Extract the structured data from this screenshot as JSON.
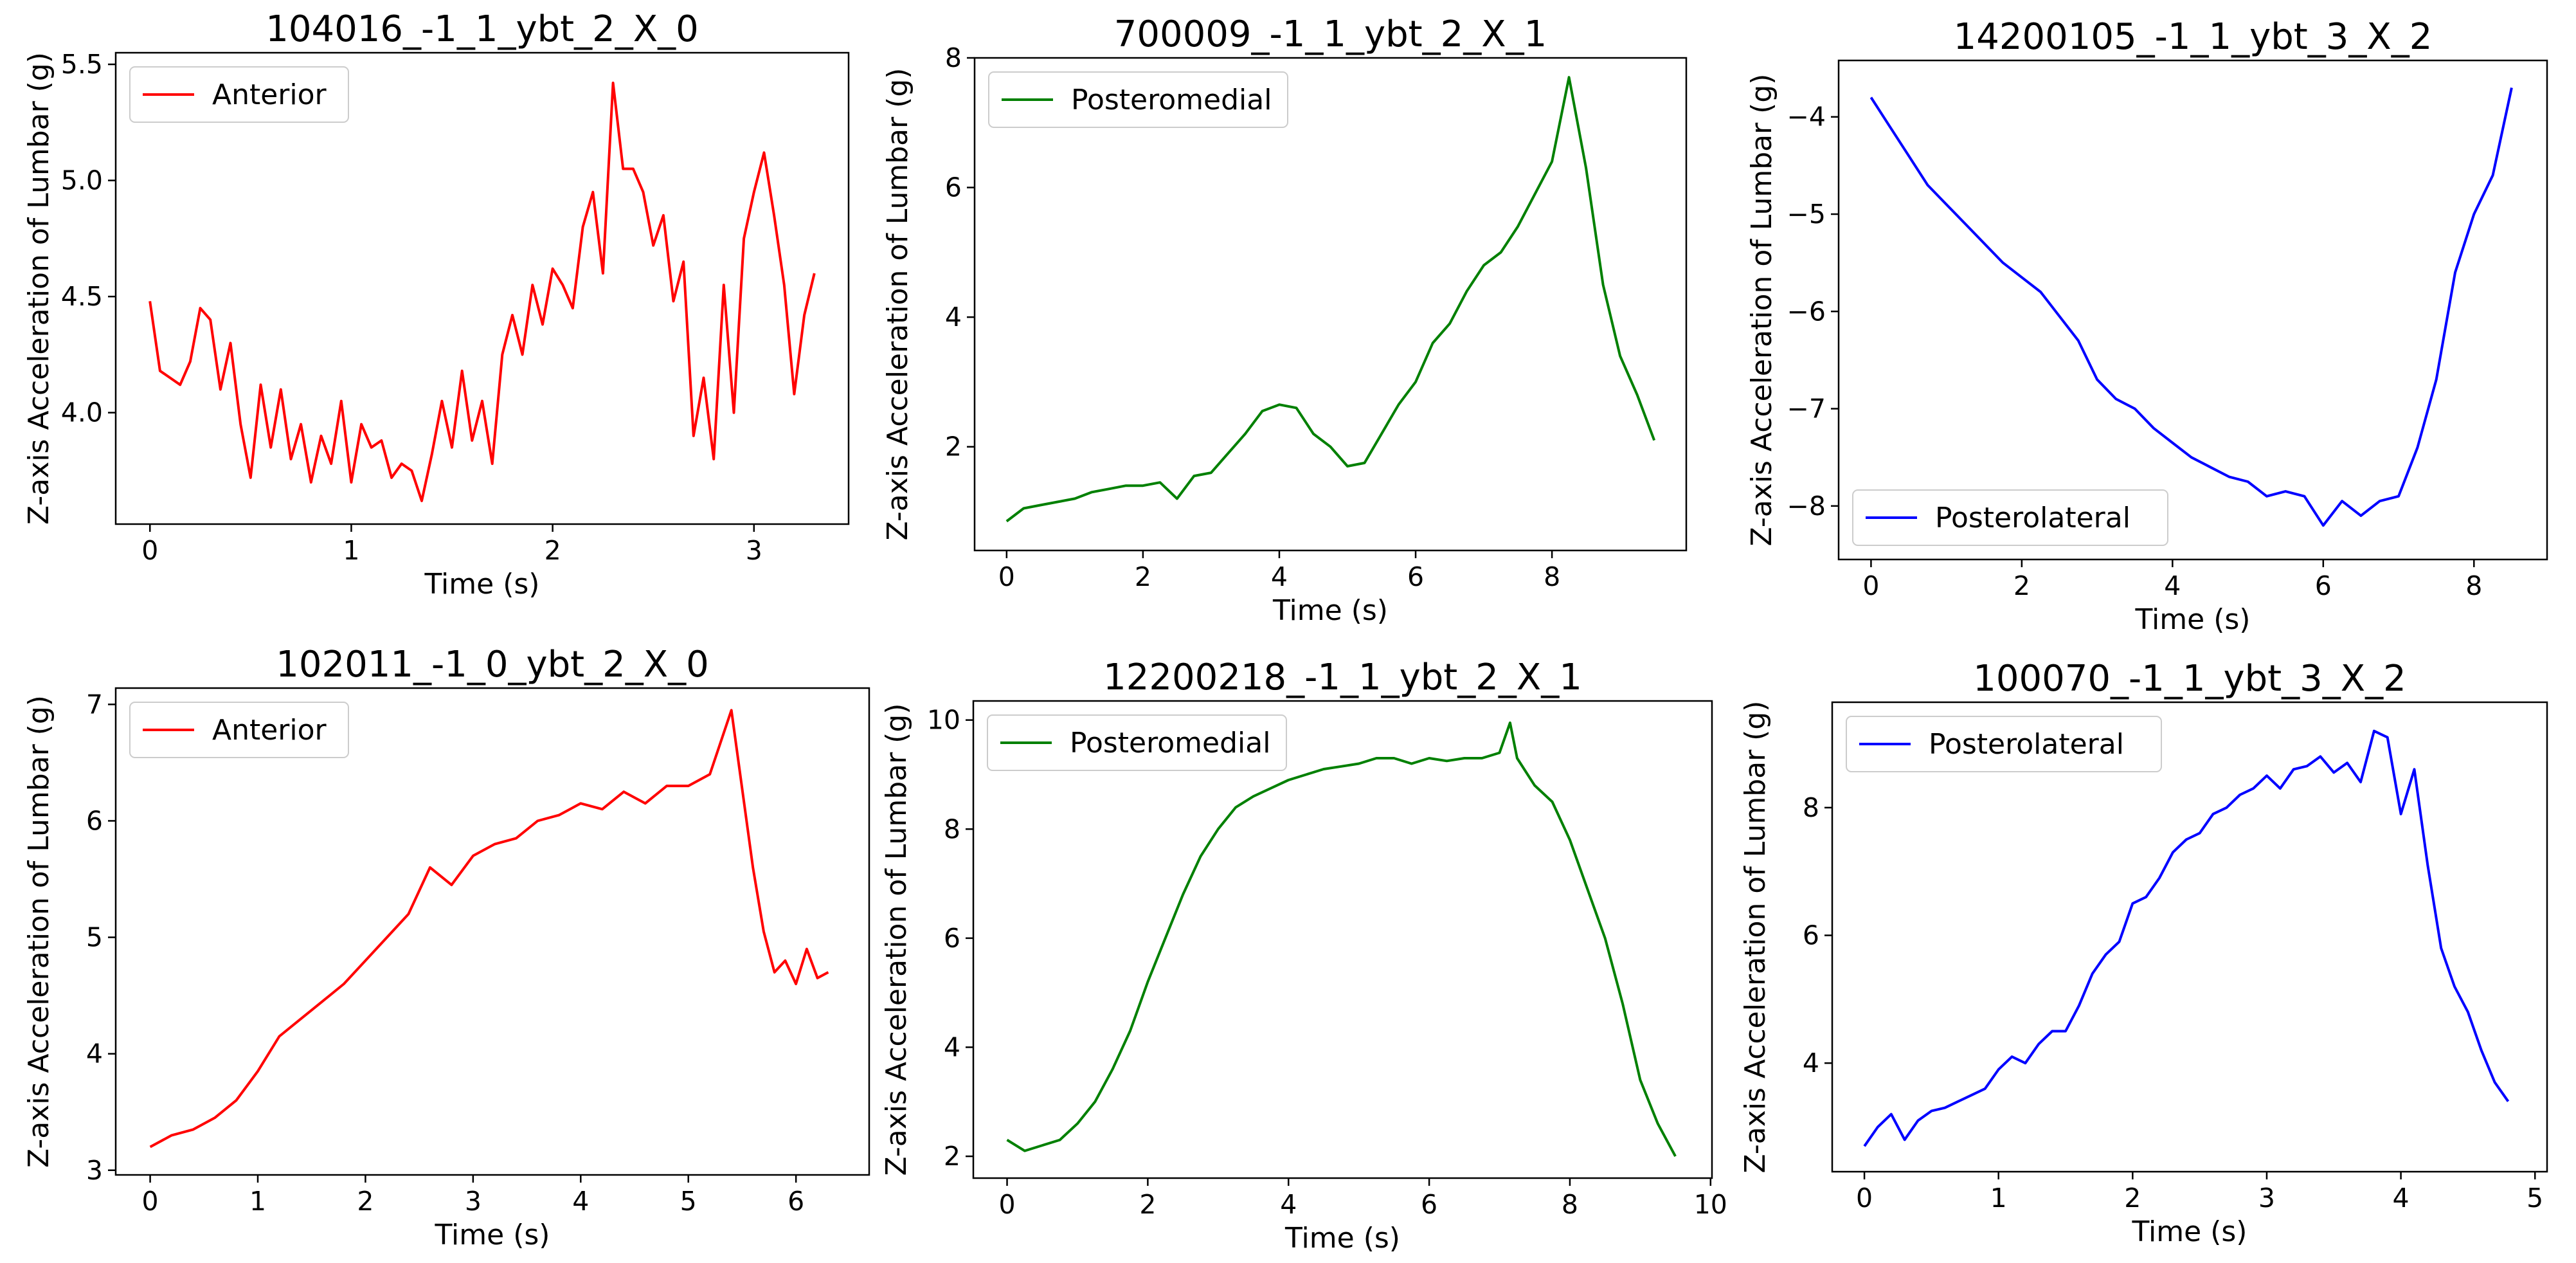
{
  "figure": {
    "background": "#ffffff"
  },
  "chart_data": [
    {
      "type": "line",
      "title": "104016_-1_1_ybt_2_X_0",
      "xlabel": "Time (s)",
      "ylabel": "Z-axis Acceleration of Lumbar (g)",
      "xlim": [
        -0.17,
        3.47
      ],
      "ylim": [
        3.52,
        5.55
      ],
      "xticks": [
        0,
        1,
        2,
        3
      ],
      "yticks": [
        4.0,
        4.5,
        5.0,
        5.5
      ],
      "ytick_labels": [
        "4.0",
        "4.5",
        "5.0",
        "5.5"
      ],
      "legend": {
        "label": "Anterior",
        "loc": "upper-left"
      },
      "color": "#ff0000",
      "series": [
        {
          "name": "Anterior",
          "x": [
            0.0,
            0.05,
            0.1,
            0.15,
            0.2,
            0.25,
            0.3,
            0.35,
            0.4,
            0.45,
            0.5,
            0.55,
            0.6,
            0.65,
            0.7,
            0.75,
            0.8,
            0.85,
            0.9,
            0.95,
            1.0,
            1.05,
            1.1,
            1.15,
            1.2,
            1.25,
            1.3,
            1.35,
            1.4,
            1.45,
            1.5,
            1.55,
            1.6,
            1.65,
            1.7,
            1.75,
            1.8,
            1.85,
            1.9,
            1.95,
            2.0,
            2.05,
            2.1,
            2.15,
            2.2,
            2.25,
            2.3,
            2.35,
            2.4,
            2.45,
            2.5,
            2.55,
            2.6,
            2.65,
            2.7,
            2.75,
            2.8,
            2.85,
            2.9,
            2.95,
            3.0,
            3.05,
            3.1,
            3.15,
            3.2,
            3.25,
            3.3
          ],
          "values": [
            4.48,
            4.18,
            4.15,
            4.12,
            4.22,
            4.45,
            4.4,
            4.1,
            4.3,
            3.95,
            3.72,
            4.12,
            3.85,
            4.1,
            3.8,
            3.95,
            3.7,
            3.9,
            3.78,
            4.05,
            3.7,
            3.95,
            3.85,
            3.88,
            3.72,
            3.78,
            3.75,
            3.62,
            3.82,
            4.05,
            3.85,
            4.18,
            3.88,
            4.05,
            3.78,
            4.25,
            4.42,
            4.25,
            4.55,
            4.38,
            4.62,
            4.55,
            4.45,
            4.8,
            4.95,
            4.6,
            5.42,
            5.05,
            5.05,
            4.95,
            4.72,
            4.85,
            4.48,
            4.65,
            3.9,
            4.15,
            3.8,
            4.55,
            4.0,
            4.75,
            4.95,
            5.12,
            4.85,
            4.55,
            4.08,
            4.42,
            4.6
          ]
        }
      ]
    },
    {
      "type": "line",
      "title": "700009_-1_1_ybt_2_X_1",
      "xlabel": "Time (s)",
      "ylabel": "Z-axis Acceleration of Lumbar (g)",
      "xlim": [
        -0.47,
        9.97
      ],
      "ylim": [
        0.4,
        8.0
      ],
      "xticks": [
        0,
        2,
        4,
        6,
        8
      ],
      "yticks": [
        2,
        4,
        6,
        8
      ],
      "ytick_labels": [
        "2",
        "4",
        "6",
        "8"
      ],
      "legend": {
        "label": "Posteromedial",
        "loc": "upper-left"
      },
      "color": "#008000",
      "series": [
        {
          "name": "Posteromedial",
          "x": [
            0.0,
            0.25,
            0.5,
            0.75,
            1.0,
            1.25,
            1.5,
            1.75,
            2.0,
            2.25,
            2.5,
            2.75,
            3.0,
            3.25,
            3.5,
            3.75,
            4.0,
            4.25,
            4.5,
            4.75,
            5.0,
            5.25,
            5.5,
            5.75,
            6.0,
            6.25,
            6.5,
            6.75,
            7.0,
            7.25,
            7.5,
            7.75,
            8.0,
            8.25,
            8.5,
            8.75,
            9.0,
            9.25,
            9.5
          ],
          "values": [
            0.85,
            1.05,
            1.1,
            1.15,
            1.2,
            1.3,
            1.35,
            1.4,
            1.4,
            1.45,
            1.2,
            1.55,
            1.6,
            1.9,
            2.2,
            2.55,
            2.65,
            2.6,
            2.2,
            2.0,
            1.7,
            1.75,
            2.2,
            2.65,
            3.0,
            3.6,
            3.9,
            4.4,
            4.8,
            5.0,
            5.4,
            5.9,
            6.4,
            7.7,
            6.3,
            4.5,
            3.4,
            2.8,
            2.1
          ]
        }
      ]
    },
    {
      "type": "line",
      "title": "14200105_-1_1_ybt_3_X_2",
      "xlabel": "Time (s)",
      "ylabel": "Z-axis Acceleration of Lumbar (g)",
      "xlim": [
        -0.43,
        8.97
      ],
      "ylim": [
        -8.55,
        -3.42
      ],
      "xticks": [
        0,
        2,
        4,
        6,
        8
      ],
      "yticks": [
        -8,
        -7,
        -6,
        -5,
        -4
      ],
      "ytick_labels": [
        "−8",
        "−7",
        "−6",
        "−5",
        "−4"
      ],
      "legend": {
        "label": "Posterolateral",
        "loc": "lower-left"
      },
      "color": "#0000ff",
      "series": [
        {
          "name": "Posterolateral",
          "x": [
            0.0,
            0.25,
            0.5,
            0.75,
            1.0,
            1.25,
            1.5,
            1.75,
            2.0,
            2.25,
            2.5,
            2.75,
            3.0,
            3.25,
            3.5,
            3.75,
            4.0,
            4.25,
            4.5,
            4.75,
            5.0,
            5.25,
            5.5,
            5.75,
            6.0,
            6.25,
            6.5,
            6.75,
            7.0,
            7.25,
            7.5,
            7.75,
            8.0,
            8.25,
            8.5
          ],
          "values": [
            -3.8,
            -4.1,
            -4.4,
            -4.7,
            -4.9,
            -5.1,
            -5.3,
            -5.5,
            -5.65,
            -5.8,
            -6.05,
            -6.3,
            -6.7,
            -6.9,
            -7.0,
            -7.2,
            -7.35,
            -7.5,
            -7.6,
            -7.7,
            -7.75,
            -7.9,
            -7.85,
            -7.9,
            -8.2,
            -7.95,
            -8.1,
            -7.95,
            -7.9,
            -7.4,
            -6.7,
            -5.6,
            -5.0,
            -4.6,
            -3.7
          ]
        }
      ]
    },
    {
      "type": "line",
      "title": "102011_-1_0_ybt_2_X_0",
      "xlabel": "Time (s)",
      "ylabel": "Z-axis Acceleration of Lumbar (g)",
      "xlim": [
        -0.32,
        6.68
      ],
      "ylim": [
        2.96,
        7.14
      ],
      "xticks": [
        0,
        1,
        2,
        3,
        4,
        5,
        6
      ],
      "yticks": [
        3,
        4,
        5,
        6,
        7
      ],
      "ytick_labels": [
        "3",
        "4",
        "5",
        "6",
        "7"
      ],
      "legend": {
        "label": "Anterior",
        "loc": "upper-left"
      },
      "color": "#ff0000",
      "series": [
        {
          "name": "Anterior",
          "x": [
            0.0,
            0.2,
            0.4,
            0.6,
            0.8,
            1.0,
            1.2,
            1.4,
            1.6,
            1.8,
            2.0,
            2.2,
            2.4,
            2.6,
            2.8,
            3.0,
            3.2,
            3.4,
            3.6,
            3.8,
            4.0,
            4.2,
            4.4,
            4.6,
            4.8,
            5.0,
            5.2,
            5.4,
            5.6,
            5.7,
            5.8,
            5.9,
            6.0,
            6.1,
            6.2,
            6.3
          ],
          "values": [
            3.2,
            3.3,
            3.35,
            3.45,
            3.6,
            3.85,
            4.15,
            4.3,
            4.45,
            4.6,
            4.8,
            5.0,
            5.2,
            5.6,
            5.45,
            5.7,
            5.8,
            5.85,
            6.0,
            6.05,
            6.15,
            6.1,
            6.25,
            6.15,
            6.3,
            6.3,
            6.4,
            6.95,
            5.6,
            5.05,
            4.7,
            4.8,
            4.6,
            4.9,
            4.65,
            4.7
          ]
        }
      ]
    },
    {
      "type": "line",
      "title": "12200218_-1_1_ybt_2_X_1",
      "xlabel": "Time (s)",
      "ylabel": "Z-axis Acceleration of Lumbar (g)",
      "xlim": [
        -0.48,
        10.02
      ],
      "ylim": [
        1.6,
        10.35
      ],
      "xticks": [
        0,
        2,
        4,
        6,
        8,
        10
      ],
      "yticks": [
        2,
        4,
        6,
        8,
        10
      ],
      "ytick_labels": [
        "2",
        "4",
        "6",
        "8",
        "10"
      ],
      "legend": {
        "label": "Posteromedial",
        "loc": "upper-left"
      },
      "color": "#008000",
      "series": [
        {
          "name": "Posteromedial",
          "x": [
            0.0,
            0.25,
            0.5,
            0.75,
            1.0,
            1.25,
            1.5,
            1.75,
            2.0,
            2.25,
            2.5,
            2.75,
            3.0,
            3.25,
            3.5,
            3.75,
            4.0,
            4.25,
            4.5,
            4.75,
            5.0,
            5.25,
            5.5,
            5.75,
            6.0,
            6.25,
            6.5,
            6.75,
            7.0,
            7.15,
            7.25,
            7.5,
            7.75,
            8.0,
            8.25,
            8.5,
            8.75,
            9.0,
            9.25,
            9.5
          ],
          "values": [
            2.3,
            2.1,
            2.2,
            2.3,
            2.6,
            3.0,
            3.6,
            4.3,
            5.2,
            6.0,
            6.8,
            7.5,
            8.0,
            8.4,
            8.6,
            8.75,
            8.9,
            9.0,
            9.1,
            9.15,
            9.2,
            9.3,
            9.3,
            9.2,
            9.3,
            9.25,
            9.3,
            9.3,
            9.4,
            9.95,
            9.3,
            8.8,
            8.5,
            7.8,
            6.9,
            6.0,
            4.8,
            3.4,
            2.6,
            2.0
          ]
        }
      ]
    },
    {
      "type": "line",
      "title": "100070_-1_1_ybt_3_X_2",
      "xlabel": "Time (s)",
      "ylabel": "Z-axis Acceleration of Lumbar (g)",
      "xlim": [
        -0.24,
        5.09
      ],
      "ylim": [
        2.3,
        9.65
      ],
      "xticks": [
        0,
        1,
        2,
        3,
        4,
        5
      ],
      "yticks": [
        4,
        6,
        8
      ],
      "ytick_labels": [
        "4",
        "6",
        "8"
      ],
      "legend": {
        "label": "Posterolateral",
        "loc": "upper-left"
      },
      "color": "#0000ff",
      "series": [
        {
          "name": "Posterolateral",
          "x": [
            0.0,
            0.1,
            0.2,
            0.3,
            0.4,
            0.5,
            0.6,
            0.7,
            0.8,
            0.9,
            1.0,
            1.1,
            1.2,
            1.3,
            1.4,
            1.5,
            1.6,
            1.7,
            1.8,
            1.9,
            2.0,
            2.1,
            2.2,
            2.3,
            2.4,
            2.5,
            2.6,
            2.7,
            2.8,
            2.9,
            3.0,
            3.1,
            3.2,
            3.3,
            3.4,
            3.5,
            3.6,
            3.7,
            3.8,
            3.9,
            4.0,
            4.1,
            4.2,
            4.3,
            4.4,
            4.5,
            4.6,
            4.7,
            4.8
          ],
          "values": [
            2.7,
            3.0,
            3.2,
            2.8,
            3.1,
            3.25,
            3.3,
            3.4,
            3.5,
            3.6,
            3.9,
            4.1,
            4.0,
            4.3,
            4.5,
            4.5,
            4.9,
            5.4,
            5.7,
            5.9,
            6.5,
            6.6,
            6.9,
            7.3,
            7.5,
            7.6,
            7.9,
            8.0,
            8.2,
            8.3,
            8.5,
            8.3,
            8.6,
            8.65,
            8.8,
            8.55,
            8.7,
            8.4,
            9.2,
            9.1,
            7.9,
            8.6,
            7.1,
            5.8,
            5.2,
            4.8,
            4.2,
            3.7,
            3.4
          ]
        }
      ]
    }
  ]
}
